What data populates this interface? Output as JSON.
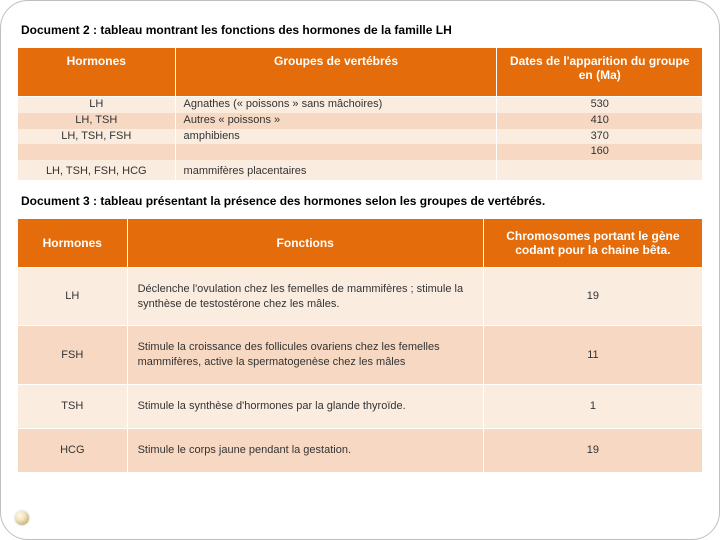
{
  "doc2": {
    "title": "Document 2 : tableau montrant les fonctions des hormones de la famille LH",
    "headers": {
      "hormones": "Hormones",
      "groups": "Groupes de vertébrés",
      "dates": "Dates de l'apparition du groupe en (Ma)"
    },
    "rows": [
      {
        "h": "LH",
        "g": "Agnathes (« poissons » sans mâchoires)",
        "d": "530"
      },
      {
        "h": "LH, TSH",
        "g": "Autres « poissons »",
        "d": "410"
      },
      {
        "h": "LH, TSH, FSH",
        "g": "amphibiens",
        "d": "370"
      },
      {
        "h": "",
        "g": "",
        "d": "160"
      },
      {
        "h": "LH, TSH, FSH, HCG",
        "g": "mammifères placentaires",
        "d": ""
      }
    ]
  },
  "doc3": {
    "title": "Document 3 : tableau présentant  la présence des hormones selon les groupes de vertébrés.",
    "headers": {
      "hormones": "Hormones",
      "functions": "Fonctions",
      "chrom": "Chromosomes portant le gène codant pour la chaine bêta."
    },
    "rows": [
      {
        "h": "LH",
        "f": "Déclenche l'ovulation chez les femelles de mammifères ; stimule la synthèse de testostérone chez les mâles.",
        "c": "19"
      },
      {
        "h": "FSH",
        "f": "Stimule la croissance des follicules ovariens chez les femelles mammifères, active la spermatogenèse chez  les mâles",
        "c": "11"
      },
      {
        "h": "TSH",
        "f": "Stimule la synthèse d'hormones par la glande thyroïde.",
        "c": "1"
      },
      {
        "h": "HCG",
        "f": "Stimule le corps jaune pendant la gestation.",
        "c": "19"
      }
    ]
  },
  "colors": {
    "header_bg": "#e46c0a",
    "row_light": "#fbece0",
    "row_dark": "#f7d9c3",
    "frame_border": "#bfbfbf"
  }
}
